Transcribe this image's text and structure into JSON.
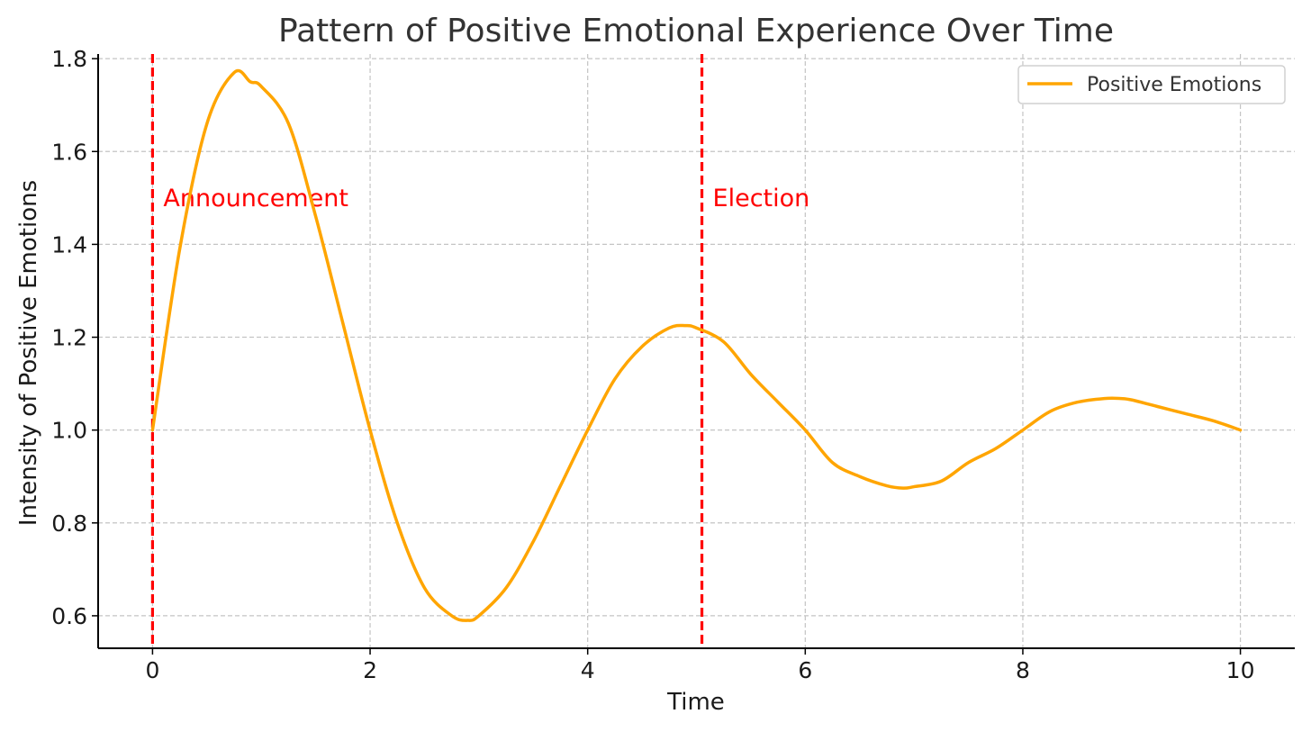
{
  "chart_data": {
    "type": "line",
    "title": "Pattern of Positive Emotional Experience Over Time",
    "xlabel": "Time",
    "ylabel": "Intensity of Positive Emotions",
    "xlim": [
      -0.5,
      10.5
    ],
    "ylim": [
      0.53,
      1.81
    ],
    "xticks": [
      0,
      2,
      4,
      6,
      8,
      10
    ],
    "yticks": [
      0.6,
      0.8,
      1.0,
      1.2,
      1.4,
      1.6,
      1.8
    ],
    "xtick_labels": [
      "0",
      "2",
      "4",
      "6",
      "8",
      "10"
    ],
    "ytick_labels": [
      "0.6",
      "0.8",
      "1.0",
      "1.2",
      "1.4",
      "1.6",
      "1.8"
    ],
    "grid": true,
    "legend_position": "top-right",
    "series": [
      {
        "name": "Positive Emotions",
        "color": "#FFA500",
        "x": [
          0,
          0.25,
          0.5,
          0.75,
          0.9,
          1.0,
          1.25,
          1.5,
          1.75,
          2.0,
          2.25,
          2.5,
          2.75,
          2.9,
          3.0,
          3.25,
          3.5,
          3.75,
          4.0,
          4.25,
          4.5,
          4.75,
          4.9,
          5.0,
          5.25,
          5.5,
          5.75,
          6.0,
          6.25,
          6.5,
          6.75,
          6.9,
          7.0,
          7.25,
          7.5,
          7.75,
          8.0,
          8.25,
          8.5,
          8.75,
          8.9,
          9.0,
          9.25,
          9.5,
          9.75,
          10.0
        ],
        "values": [
          1.0,
          1.39,
          1.66,
          1.77,
          1.75,
          1.74,
          1.66,
          1.46,
          1.23,
          1.0,
          0.8,
          0.66,
          0.6,
          0.59,
          0.6,
          0.66,
          0.76,
          0.88,
          1.0,
          1.11,
          1.18,
          1.22,
          1.225,
          1.22,
          1.19,
          1.12,
          1.06,
          1.0,
          0.93,
          0.9,
          0.88,
          0.875,
          0.878,
          0.89,
          0.93,
          0.96,
          1.0,
          1.04,
          1.06,
          1.068,
          1.068,
          1.065,
          1.05,
          1.035,
          1.02,
          1.0
        ]
      }
    ],
    "annotations": [
      {
        "x": 0,
        "label": "Announcement",
        "color": "#FF0000"
      },
      {
        "x": 5.05,
        "label": "Election",
        "color": "#FF0000"
      }
    ]
  }
}
